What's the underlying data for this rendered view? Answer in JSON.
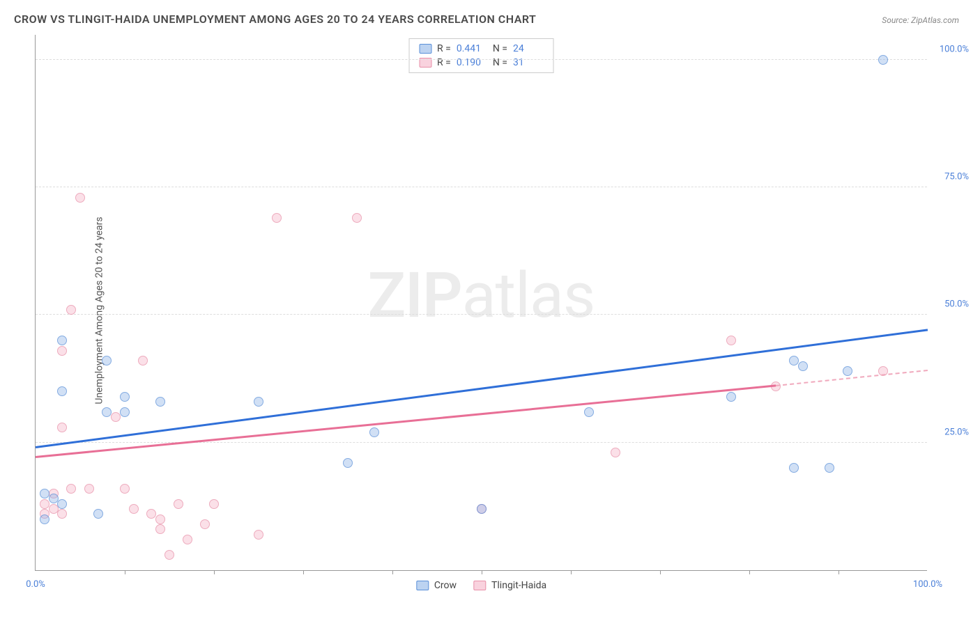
{
  "title": "CROW VS TLINGIT-HAIDA UNEMPLOYMENT AMONG AGES 20 TO 24 YEARS CORRELATION CHART",
  "source": "Source: ZipAtlas.com",
  "ylabel": "Unemployment Among Ages 20 to 24 years",
  "watermark_bold": "ZIP",
  "watermark_light": "atlas",
  "chart": {
    "type": "scatter",
    "xlim": [
      0,
      100
    ],
    "ylim": [
      0,
      105
    ],
    "yticks": [
      {
        "v": 25,
        "label": "25.0%"
      },
      {
        "v": 50,
        "label": "50.0%"
      },
      {
        "v": 75,
        "label": "75.0%"
      },
      {
        "v": 100,
        "label": "100.0%"
      }
    ],
    "xticks_minor": [
      10,
      20,
      30,
      40,
      50,
      60,
      70,
      80,
      90
    ],
    "xlabels": [
      {
        "v": 0,
        "label": "0.0%"
      },
      {
        "v": 100,
        "label": "100.0%"
      }
    ],
    "background_color": "#ffffff",
    "grid_color": "#dddddd"
  },
  "series": {
    "crow": {
      "label": "Crow",
      "color_fill": "rgba(144,181,232,0.55)",
      "color_stroke": "#5a8fd8",
      "r": "0.441",
      "n": "24",
      "trend": {
        "x1": 0,
        "y1": 24,
        "x2": 100,
        "y2": 47,
        "color": "#2f6fd8"
      },
      "points": [
        [
          3,
          45
        ],
        [
          8,
          41
        ],
        [
          3,
          35
        ],
        [
          10,
          34
        ],
        [
          14,
          33
        ],
        [
          8,
          31
        ],
        [
          10,
          31
        ],
        [
          25,
          33
        ],
        [
          38,
          27
        ],
        [
          35,
          21
        ],
        [
          1,
          15
        ],
        [
          2,
          14
        ],
        [
          3,
          13
        ],
        [
          7,
          11
        ],
        [
          1,
          10
        ],
        [
          78,
          34
        ],
        [
          86,
          40
        ],
        [
          91,
          39
        ],
        [
          85,
          20
        ],
        [
          89,
          20
        ],
        [
          62,
          31
        ],
        [
          50,
          12
        ],
        [
          95,
          100
        ],
        [
          85,
          41
        ]
      ]
    },
    "tlingit": {
      "label": "Tlingit-Haida",
      "color_fill": "rgba(245,180,200,0.55)",
      "color_stroke": "#e88fa8",
      "r": "0.190",
      "n": "31",
      "trend_solid": {
        "x1": 0,
        "y1": 22,
        "x2": 83,
        "y2": 36,
        "color": "#e86f96"
      },
      "trend_dashed": {
        "x1": 83,
        "y1": 36,
        "x2": 100,
        "y2": 39,
        "color": "#f0a8bc"
      },
      "points": [
        [
          5,
          73
        ],
        [
          27,
          69
        ],
        [
          36,
          69
        ],
        [
          4,
          51
        ],
        [
          3,
          43
        ],
        [
          12,
          41
        ],
        [
          3,
          28
        ],
        [
          9,
          30
        ],
        [
          2,
          15
        ],
        [
          4,
          16
        ],
        [
          6,
          16
        ],
        [
          10,
          16
        ],
        [
          1,
          13
        ],
        [
          2,
          12
        ],
        [
          1,
          11
        ],
        [
          3,
          11
        ],
        [
          11,
          12
        ],
        [
          13,
          11
        ],
        [
          14,
          10
        ],
        [
          16,
          13
        ],
        [
          20,
          13
        ],
        [
          19,
          9
        ],
        [
          14,
          8
        ],
        [
          17,
          6
        ],
        [
          25,
          7
        ],
        [
          15,
          3
        ],
        [
          50,
          12
        ],
        [
          65,
          23
        ],
        [
          78,
          45
        ],
        [
          95,
          39
        ],
        [
          83,
          36
        ]
      ]
    }
  },
  "legend_top": {
    "r_label": "R =",
    "n_label": "N ="
  }
}
